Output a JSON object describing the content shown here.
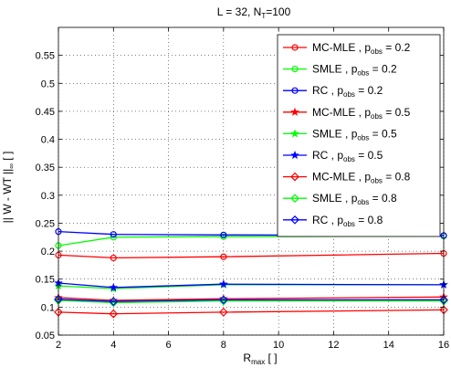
{
  "chart_data": {
    "type": "line",
    "title": {
      "main": "L = 32, N",
      "sub": "T",
      "rest": "=100"
    },
    "xlabel": {
      "main": "R",
      "sub": "max",
      "rest": " [ ]"
    },
    "ylabel": {
      "main": "|| W - WT ||",
      "sub": "∞",
      "rest": " [ ]"
    },
    "xlim": [
      2,
      16
    ],
    "ylim": [
      0.05,
      0.6
    ],
    "xticks": [
      2,
      4,
      6,
      8,
      10,
      12,
      14,
      16
    ],
    "yticks": [
      0.05,
      0.1,
      0.15,
      0.2,
      0.25,
      0.3,
      0.35,
      0.4,
      0.45,
      0.5,
      0.55
    ],
    "ytick_labels": [
      "0.05",
      "0.1",
      "0.15",
      "0.2",
      "0.25",
      "0.3",
      "0.35",
      "0.4",
      "0.45",
      "0.5",
      "0.55"
    ],
    "grid": true,
    "legend_position": "top-right",
    "x": [
      2,
      4,
      8,
      16
    ],
    "series": [
      {
        "legend_label": {
          "method": "MC-MLE ,",
          "p": "p",
          "sub": "obs",
          "eq": " = 0.2"
        },
        "color": "#ff0000",
        "marker": "circle",
        "values": [
          0.193,
          0.188,
          0.19,
          0.196
        ]
      },
      {
        "legend_label": {
          "method": "SMLE ,",
          "p": "p",
          "sub": "obs",
          "eq": " = 0.2"
        },
        "color": "#00ff00",
        "marker": "circle",
        "values": [
          0.21,
          0.225,
          0.226,
          0.227
        ]
      },
      {
        "legend_label": {
          "method": "RC ,",
          "p": "p",
          "sub": "obs",
          "eq": " = 0.2"
        },
        "color": "#0000ff",
        "marker": "circle",
        "values": [
          0.235,
          0.23,
          0.229,
          0.228
        ]
      },
      {
        "legend_label": {
          "method": "MC-MLE ,",
          "p": "p",
          "sub": "obs",
          "eq": " = 0.5"
        },
        "color": "#ff0000",
        "marker": "star",
        "values": [
          0.117,
          0.112,
          0.115,
          0.118
        ]
      },
      {
        "legend_label": {
          "method": "SMLE ,",
          "p": "p",
          "sub": "obs",
          "eq": " = 0.5"
        },
        "color": "#00ff00",
        "marker": "star",
        "values": [
          0.138,
          0.133,
          0.14,
          0.14
        ]
      },
      {
        "legend_label": {
          "method": "RC ,",
          "p": "p",
          "sub": "obs",
          "eq": " = 0.5"
        },
        "color": "#0000ff",
        "marker": "star",
        "values": [
          0.143,
          0.135,
          0.141,
          0.14
        ]
      },
      {
        "legend_label": {
          "method": "MC-MLE ,",
          "p": "p",
          "sub": "obs",
          "eq": " = 0.8"
        },
        "color": "#ff0000",
        "marker": "diamond",
        "values": [
          0.091,
          0.088,
          0.091,
          0.095
        ]
      },
      {
        "legend_label": {
          "method": "SMLE ,",
          "p": "p",
          "sub": "obs",
          "eq": " = 0.8"
        },
        "color": "#00ff00",
        "marker": "diamond",
        "values": [
          0.112,
          0.108,
          0.111,
          0.111
        ]
      },
      {
        "legend_label": {
          "method": "RC ,",
          "p": "p",
          "sub": "obs",
          "eq": " = 0.8"
        },
        "color": "#0000ff",
        "marker": "diamond",
        "values": [
          0.114,
          0.11,
          0.113,
          0.113
        ]
      }
    ]
  }
}
